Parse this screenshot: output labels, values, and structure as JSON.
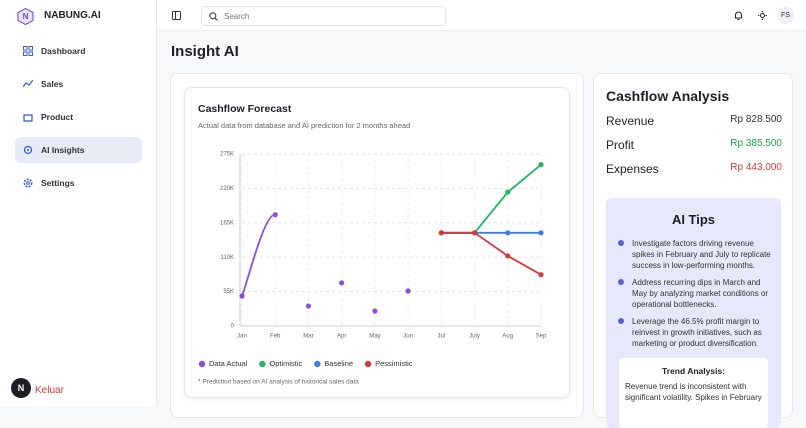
{
  "brand": "NABUNG.AI",
  "nav": [
    "Dashboard",
    "Sales",
    "Product",
    "AI Insights",
    "Settings"
  ],
  "logout": "Keluar",
  "avatar": "N",
  "search_placeholder": "Search",
  "user_initials": "FS",
  "page_title": "Insight AI",
  "chart_data": {
    "type": "line",
    "title": "Cashflow Forecast",
    "subtitle": "Actual data from database and AI prediction for 2 months ahead",
    "footnote": "* Prediction based on AI analysis of historical sales data",
    "categories": [
      "Jan",
      "Feb",
      "Mar",
      "Apr",
      "May",
      "Jun",
      "Jul",
      "July",
      "Aug",
      "Sep"
    ],
    "series": [
      {
        "name": "Data Actual",
        "color": "#8e4fd8",
        "smooth": true,
        "values": [
          48000,
          178000,
          32000,
          69000,
          24000,
          56000,
          149000,
          null,
          null,
          null
        ]
      },
      {
        "name": "Optimistic",
        "color": "#27b560",
        "smooth": false,
        "values": [
          null,
          null,
          null,
          null,
          null,
          null,
          149000,
          149000,
          214000,
          258000
        ]
      },
      {
        "name": "Baseline",
        "color": "#3b7fdc",
        "smooth": false,
        "values": [
          null,
          null,
          null,
          null,
          null,
          null,
          149000,
          149000,
          149000,
          149000
        ]
      },
      {
        "name": "Pessimistic",
        "color": "#d63b3b",
        "smooth": false,
        "values": [
          null,
          null,
          null,
          null,
          null,
          null,
          149000,
          149000,
          112000,
          82000
        ]
      }
    ],
    "ylim": [
      0,
      275000
    ],
    "yticks": [
      0,
      {
        "value": 55000,
        "label": "55K"
      },
      {
        "value": 110000,
        "label": "110K"
      },
      {
        "value": 165000,
        "label": "165K"
      },
      {
        "value": 220000,
        "label": "220K"
      },
      {
        "value": 275000,
        "label": "275K"
      }
    ],
    "grid": true
  },
  "analysis": {
    "title": "Cashflow Analysis",
    "rows": [
      {
        "label": "Revenue",
        "value": "Rp 828.500"
      },
      {
        "label": "Profit",
        "value": "Rp 385.500"
      },
      {
        "label": "Expenses",
        "value": "Rp 443.000"
      }
    ]
  },
  "tips": {
    "title": "AI Tips",
    "items": [
      "Investigate factors driving revenue spikes in February and July to replicate success in low-performing months.",
      "Address recurring dips in March and May by analyzing market conditions or operational bottlenecks.",
      "Leverage the 46.5% profit margin to reinvest in growth initiatives, such as marketing or product diversification."
    ]
  },
  "trend": {
    "title": "Trend Analysis:",
    "text": "Revenue trend is inconsistent with significant volatility. Spikes in February"
  }
}
